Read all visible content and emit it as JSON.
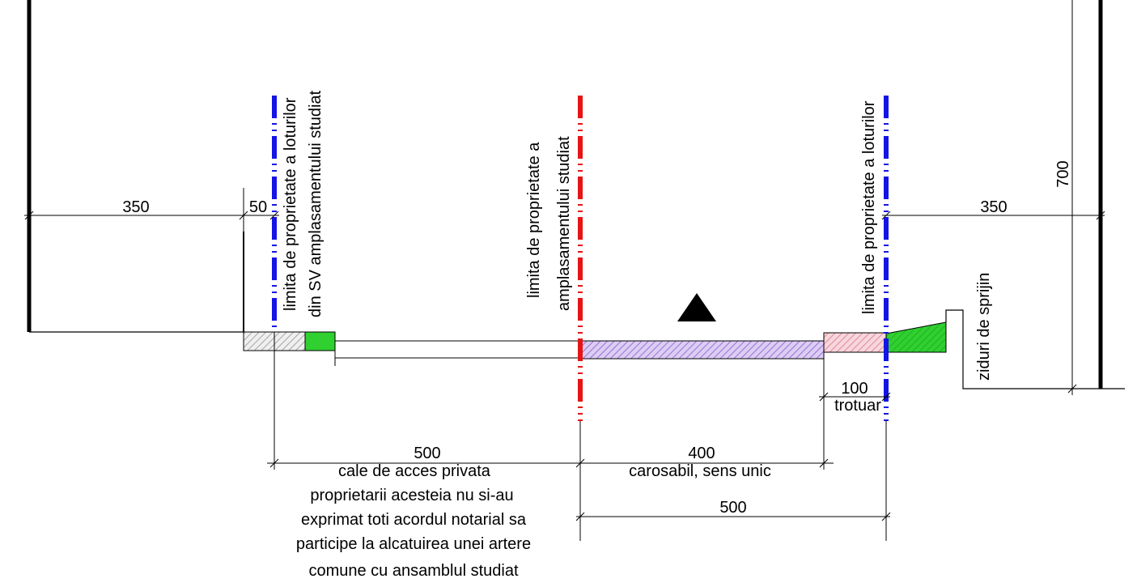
{
  "dimensions": {
    "left_offset": "350",
    "left_small": "50",
    "right_offset": "350",
    "height": "700",
    "sidewalk_width": "100",
    "access_road_width": "500",
    "carriageway_width": "400",
    "total_right": "500"
  },
  "labels": {
    "sv_boundary_line1": "limita de proprietate a loturilor",
    "sv_boundary_line2": "din SV amplasamentului studiat",
    "study_boundary_line1": "limita de proprietate a",
    "study_boundary_line2": "amplasamentului studiat",
    "right_boundary": "limita de proprietate a loturilor",
    "retaining_walls": "ziduri de sprijin",
    "sidewalk": "trotuar",
    "carriageway": "carosabil, sens unic"
  },
  "access_road_note": [
    "cale de acces privata",
    "proprietarii acesteia nu si-au",
    "exprimat toti acordul notarial sa",
    "participe la alcatuirea unei artere",
    "comune cu ansamblul studiat"
  ],
  "colors": {
    "property_line_blue": "#1414e6",
    "study_line_red": "#e61414",
    "green_strip": "#22c222",
    "carriageway_hatch": "#9a70d8",
    "sidewalk_hatch": "#e08a9a",
    "gray_hatch": "#909090"
  }
}
